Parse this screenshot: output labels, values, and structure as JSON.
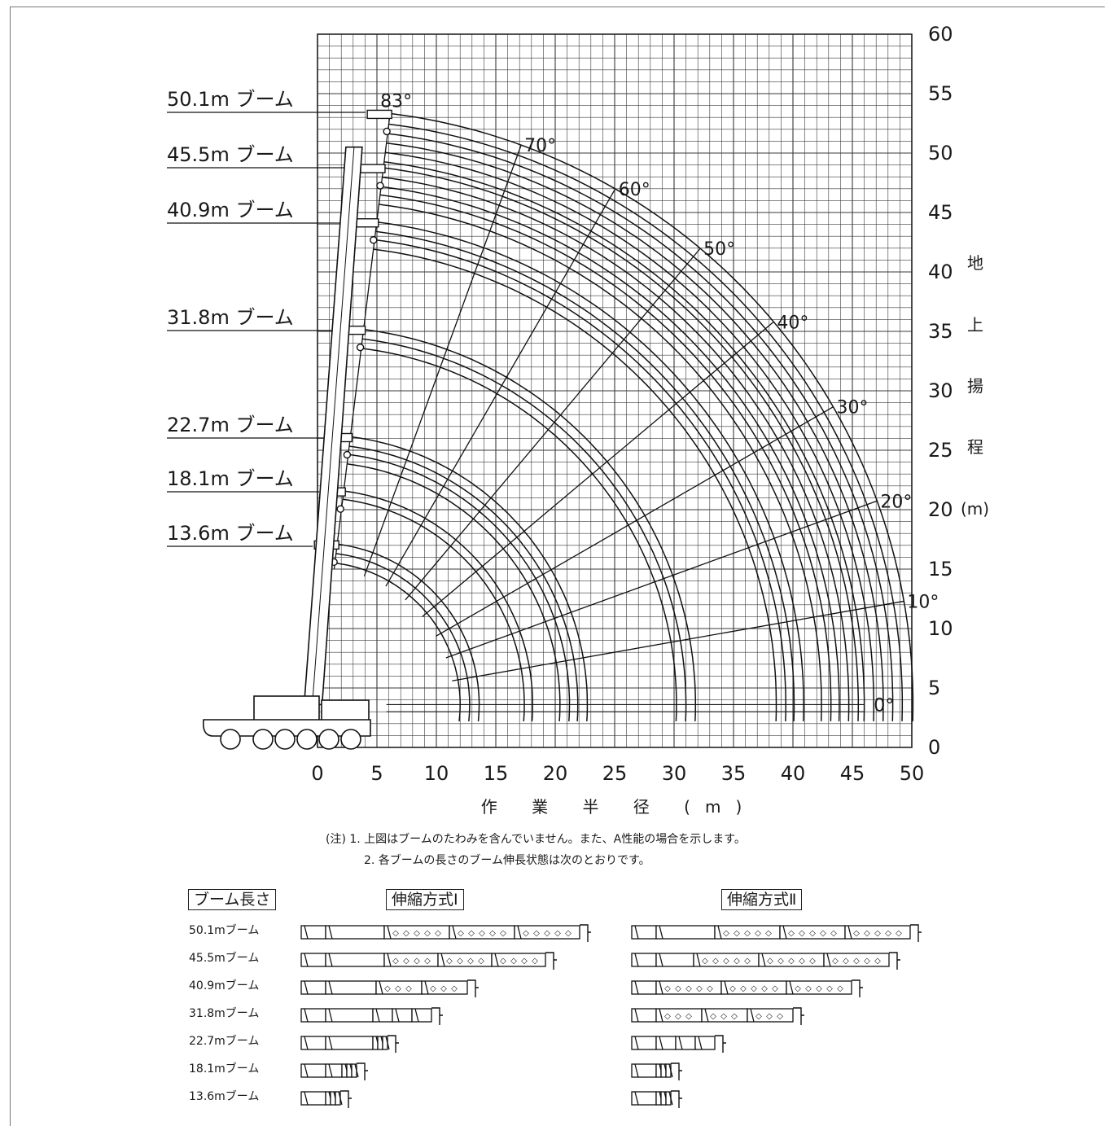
{
  "chart_data": {
    "type": "line",
    "title": "",
    "xlabel": "作 業 半 径 (m)",
    "ylabel": "地 上 揚 程 (m)",
    "ylabel_chars": [
      "地",
      "上",
      "揚",
      "程",
      "(m)"
    ],
    "xlim": [
      0,
      50
    ],
    "ylim": [
      0,
      60
    ],
    "x_ticks": [
      "0",
      "5",
      "10",
      "15",
      "20",
      "25",
      "30",
      "35",
      "40",
      "45",
      "50"
    ],
    "y_ticks": [
      "0",
      "5",
      "10",
      "15",
      "20",
      "25",
      "30",
      "35",
      "40",
      "45",
      "50",
      "55",
      "60"
    ],
    "grid": true,
    "pivot": [
      0.0,
      3.6
    ],
    "boom_series": [
      {
        "name": "50.1m ブーム",
        "length": 50.1,
        "sublines": [
          50.1,
          49.2,
          48.4,
          47.6,
          46.8,
          46.0
        ]
      },
      {
        "name": "45.5m ブーム",
        "length": 45.5,
        "sublines": [
          45.5,
          44.7,
          43.9,
          43.2,
          42.4
        ]
      },
      {
        "name": "40.9m ブーム",
        "length": 40.9,
        "sublines": [
          40.9,
          40.1,
          39.4,
          38.6
        ]
      },
      {
        "name": "31.8m ブーム",
        "length": 31.8,
        "sublines": [
          31.8,
          31.0,
          30.2
        ]
      },
      {
        "name": "22.7m ブーム",
        "length": 22.7,
        "sublines": [
          22.7,
          21.9,
          21.2,
          20.4
        ]
      },
      {
        "name": "18.1m ブーム",
        "length": 18.1,
        "sublines": [
          18.1,
          17.4
        ]
      },
      {
        "name": "13.6m ブーム",
        "length": 13.6,
        "sublines": [
          13.6,
          12.8,
          12.0
        ]
      }
    ],
    "angle_lines": [
      {
        "label": "83°",
        "angle": 83
      },
      {
        "label": "70°",
        "angle": 70
      },
      {
        "label": "60°",
        "angle": 60
      },
      {
        "label": "50°",
        "angle": 50
      },
      {
        "label": "40°",
        "angle": 40
      },
      {
        "label": "30°",
        "angle": 30
      },
      {
        "label": "20°",
        "angle": 20
      },
      {
        "label": "10°",
        "angle": 10
      },
      {
        "label": "0°",
        "angle": 0
      }
    ]
  },
  "notes": {
    "line1": "(注) 1. 上図はブームのたわみを含んでいません。また、A性能の場合を示します。",
    "line2": "2. 各ブームの長さのブーム伸長状態は次のとおりです。"
  },
  "boom_table": {
    "header": "ブーム長さ",
    "method1": "伸縮方式Ⅰ",
    "method2": "伸縮方式Ⅱ",
    "rows": [
      {
        "label": "50.1mブーム",
        "m1": [
          30,
          72,
          80,
          80,
          80
        ],
        "m2": [
          30,
          72,
          80,
          80,
          80
        ]
      },
      {
        "label": "45.5mブーム",
        "m1": [
          30,
          72,
          66,
          66,
          66
        ],
        "m2": [
          30,
          46,
          80,
          80,
          80
        ]
      },
      {
        "label": "40.9mブーム",
        "m1": [
          30,
          62,
          56,
          56,
          0
        ],
        "m2": [
          30,
          0,
          80,
          80,
          80
        ]
      },
      {
        "label": "31.8mブーム",
        "m1": [
          30,
          58,
          24,
          24,
          24
        ],
        "m2": [
          30,
          0,
          56,
          56,
          56
        ]
      },
      {
        "label": "22.7mブーム",
        "m1": [
          30,
          58,
          6,
          6,
          6
        ],
        "m2": [
          30,
          0,
          24,
          24,
          24
        ]
      },
      {
        "label": "18.1mブーム",
        "m1": [
          30,
          20,
          6,
          6,
          6
        ],
        "m2": [
          30,
          0,
          6,
          6,
          6
        ]
      },
      {
        "label": "13.6mブーム",
        "m1": [
          30,
          0,
          6,
          6,
          6
        ],
        "m2": [
          30,
          0,
          6,
          6,
          6
        ]
      }
    ]
  }
}
